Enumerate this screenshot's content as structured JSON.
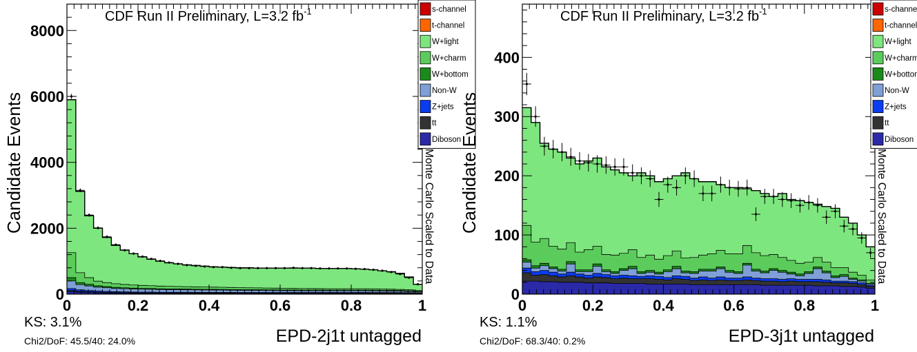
{
  "legend_labels": [
    "s-channel",
    "t-channel",
    "W+light",
    "W+charm",
    "W+bottom",
    "Non-W",
    "Z+jets",
    "tt",
    "Diboson"
  ],
  "legend_colors": [
    "#cc0000",
    "#ff6600",
    "#7ee67e",
    "#5bcc5b",
    "#1a8a1a",
    "#7f9fd6",
    "#0a3cf0",
    "#333333",
    "#2a2aa8"
  ],
  "side_label": "Monte Carlo Scaled to Data",
  "y_title": "Candidate Events",
  "chart_data": [
    {
      "type": "area",
      "title": "CDF Run II Preliminary, L=3.2 fb",
      "title_superscript": "-1",
      "xlabel": "EPD-2j1t untagged",
      "ylabel": "Candidate Events",
      "xlim": [
        0,
        1
      ],
      "ylim": [
        0,
        8800
      ],
      "xticks": [
        "0",
        "0.2",
        "0.4",
        "0.6",
        "0.8",
        "1"
      ],
      "yticks": [
        "0",
        "2000",
        "4000",
        "6000",
        "8000"
      ],
      "ks_text": "KS: 3.1%",
      "chi2_text": "Chi2/DoF: 45.5/40: 24.0%",
      "stack_series": [
        "Diboson",
        "tt",
        "Z+jets",
        "Non-W",
        "W+bottom",
        "W+charm",
        "W+light"
      ],
      "bins": 40,
      "mc_total": [
        5900,
        3120,
        2380,
        2000,
        1720,
        1480,
        1340,
        1230,
        1130,
        1060,
        1000,
        950,
        920,
        890,
        870,
        850,
        830,
        820,
        810,
        800,
        800,
        790,
        790,
        790,
        790,
        790,
        790,
        790,
        780,
        780,
        780,
        780,
        770,
        760,
        740,
        710,
        680,
        630,
        520,
        300
      ],
      "components": {
        "Diboson": [
          80,
          60,
          50,
          40,
          35,
          30,
          28,
          26,
          25,
          25,
          24,
          24,
          23,
          23,
          22,
          22,
          22,
          22,
          22,
          21,
          21,
          21,
          21,
          21,
          21,
          21,
          21,
          21,
          21,
          21,
          21,
          21,
          21,
          21,
          20,
          20,
          20,
          19,
          18,
          15
        ],
        "tt": [
          30,
          25,
          20,
          18,
          16,
          14,
          13,
          12,
          12,
          12,
          11,
          11,
          11,
          11,
          11,
          11,
          11,
          11,
          11,
          11,
          11,
          11,
          11,
          11,
          11,
          11,
          11,
          11,
          11,
          11,
          11,
          11,
          11,
          11,
          11,
          10,
          10,
          10,
          9,
          8
        ],
        "Z+jets": [
          60,
          45,
          40,
          35,
          32,
          30,
          28,
          26,
          25,
          24,
          23,
          22,
          22,
          22,
          21,
          21,
          21,
          21,
          20,
          20,
          20,
          20,
          20,
          20,
          20,
          20,
          20,
          20,
          20,
          20,
          20,
          20,
          20,
          20,
          19,
          19,
          18,
          18,
          17,
          15
        ],
        "Non-W": [
          230,
          160,
          140,
          120,
          110,
          100,
          95,
          90,
          87,
          85,
          82,
          80,
          78,
          76,
          74,
          72,
          70,
          68,
          66,
          64,
          62,
          60,
          58,
          56,
          54,
          52,
          50,
          50,
          50,
          50,
          50,
          50,
          50,
          50,
          50,
          48,
          45,
          42,
          38,
          30
        ],
        "W+bottom": [
          100,
          60,
          50,
          40,
          36,
          32,
          30,
          28,
          26,
          25,
          24,
          23,
          22,
          22,
          21,
          21,
          21,
          21,
          20,
          20,
          20,
          20,
          20,
          20,
          20,
          20,
          20,
          20,
          20,
          20,
          20,
          20,
          20,
          20,
          20,
          20,
          19,
          19,
          18,
          15
        ],
        "W+charm": [
          760,
          300,
          200,
          140,
          120,
          110,
          100,
          95,
          90,
          85,
          80,
          78,
          76,
          74,
          72,
          70,
          68,
          66,
          64,
          62,
          60,
          58,
          56,
          54,
          52,
          50,
          48,
          46,
          44,
          42,
          42,
          42,
          42,
          42,
          42,
          40,
          38,
          36,
          32,
          25
        ]
      },
      "data_points": [
        6000,
        3150,
        2400,
        2010,
        1740,
        1500,
        1330,
        1230,
        1140,
        1070,
        1010,
        960,
        920,
        880,
        860,
        840,
        820,
        820,
        800,
        790,
        790,
        790,
        790,
        790,
        790,
        800,
        790,
        790,
        780,
        780,
        780,
        780,
        770,
        760,
        740,
        710,
        670,
        610,
        500,
        300
      ]
    },
    {
      "type": "area",
      "title": "CDF Run II Preliminary, L=3.2 fb",
      "title_superscript": "-1",
      "xlabel": "EPD-3j1t untagged",
      "ylabel": "Candidate Events",
      "xlim": [
        0,
        1
      ],
      "ylim": [
        0,
        490
      ],
      "xticks": [
        "0",
        "0.2",
        "0.4",
        "0.6",
        "0.8",
        "1"
      ],
      "yticks": [
        "0",
        "100",
        "200",
        "300",
        "400"
      ],
      "ks_text": "KS: 1.1%",
      "chi2_text": "Chi2/DoF: 68.3/40: 0.2%",
      "stack_series": [
        "Diboson",
        "tt",
        "Z+jets",
        "Non-W",
        "W+bottom",
        "W+charm",
        "W+light"
      ],
      "bins": 40,
      "mc_total": [
        315,
        290,
        255,
        245,
        240,
        230,
        220,
        225,
        230,
        215,
        210,
        205,
        200,
        205,
        200,
        190,
        195,
        200,
        205,
        195,
        190,
        190,
        185,
        180,
        180,
        178,
        175,
        170,
        165,
        170,
        160,
        158,
        155,
        152,
        148,
        145,
        130,
        120,
        100,
        80
      ],
      "components": {
        "Diboson": [
          22,
          22,
          21,
          21,
          20,
          20,
          20,
          19,
          19,
          19,
          18,
          18,
          18,
          18,
          17,
          17,
          17,
          17,
          17,
          16,
          16,
          16,
          16,
          16,
          16,
          16,
          16,
          15,
          15,
          15,
          15,
          15,
          15,
          14,
          14,
          14,
          13,
          13,
          12,
          10
        ],
        "tt": [
          14,
          10,
          12,
          10,
          9,
          11,
          9,
          8,
          10,
          9,
          8,
          9,
          8,
          8,
          9,
          8,
          7,
          9,
          8,
          7,
          8,
          7,
          8,
          7,
          7,
          8,
          7,
          7,
          7,
          6,
          7,
          6,
          6,
          7,
          6,
          5,
          6,
          5,
          4,
          3
        ],
        "Z+jets": [
          8,
          6,
          7,
          6,
          5,
          6,
          5,
          5,
          6,
          5,
          5,
          5,
          5,
          4,
          5,
          5,
          4,
          5,
          5,
          4,
          5,
          4,
          5,
          4,
          4,
          5,
          4,
          4,
          4,
          4,
          4,
          4,
          4,
          4,
          4,
          3,
          3,
          3,
          3,
          2
        ],
        "Non-W": [
          10,
          6,
          8,
          6,
          5,
          14,
          4,
          6,
          12,
          5,
          4,
          8,
          12,
          5,
          6,
          4,
          10,
          12,
          6,
          8,
          10,
          12,
          14,
          10,
          8,
          20,
          12,
          10,
          14,
          12,
          8,
          6,
          10,
          18,
          12,
          6,
          8,
          4,
          3,
          2
        ],
        "W+bottom": [
          4,
          4,
          4,
          3,
          3,
          4,
          3,
          3,
          4,
          3,
          3,
          3,
          4,
          3,
          3,
          3,
          3,
          4,
          3,
          3,
          3,
          3,
          3,
          3,
          3,
          3,
          3,
          3,
          3,
          3,
          3,
          3,
          3,
          3,
          3,
          3,
          3,
          2,
          2,
          1
        ],
        "W+charm": [
          58,
          40,
          42,
          35,
          34,
          32,
          30,
          34,
          30,
          26,
          28,
          26,
          28,
          24,
          26,
          22,
          24,
          26,
          22,
          24,
          24,
          26,
          28,
          28,
          30,
          30,
          28,
          26,
          24,
          22,
          20,
          18,
          16,
          16,
          15,
          14,
          12,
          10,
          8,
          6
        ]
      },
      "data_points": [
        355,
        300,
        250,
        245,
        240,
        232,
        225,
        222,
        220,
        218,
        215,
        215,
        205,
        200,
        195,
        160,
        185,
        180,
        200,
        195,
        170,
        170,
        185,
        180,
        178,
        180,
        135,
        165,
        165,
        160,
        158,
        150,
        155,
        150,
        130,
        140,
        115,
        110,
        95,
        70
      ]
    }
  ]
}
